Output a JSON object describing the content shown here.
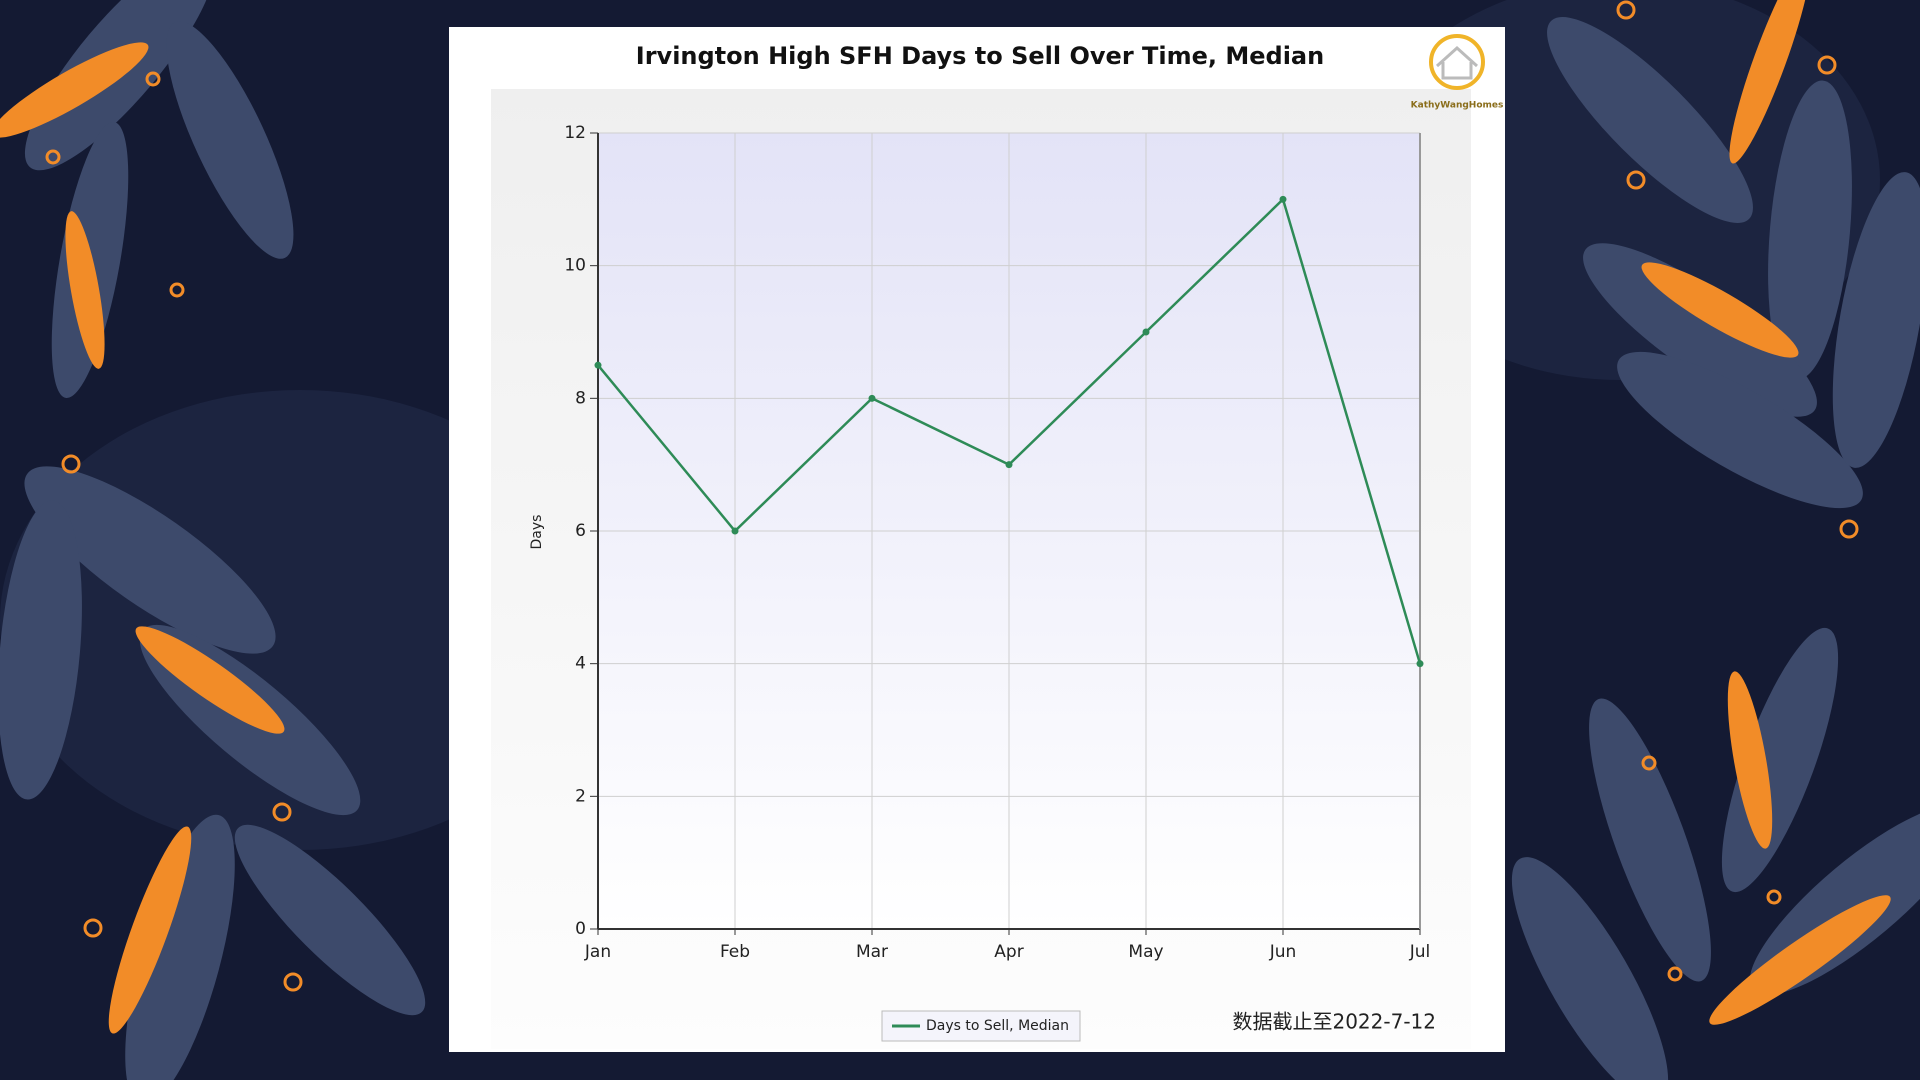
{
  "chart_data": {
    "type": "line",
    "title": "Irvington High SFH Days to Sell Over Time, Median",
    "y_label": "Days",
    "categories": [
      "Jan",
      "Feb",
      "Mar",
      "Apr",
      "May",
      "Jun",
      "Jul"
    ],
    "series": [
      {
        "name": "Days to Sell, Median",
        "color": "#2e8b57",
        "values": [
          8.5,
          6,
          8,
          7,
          9,
          11,
          4
        ]
      }
    ],
    "ylim": [
      0,
      12
    ],
    "yticks": [
      0,
      2,
      4,
      6,
      8,
      10,
      12
    ],
    "grid": true,
    "legend": "bottom",
    "note": "数据截止至2022-7-12",
    "logo_text": "KathyWangHomes"
  }
}
